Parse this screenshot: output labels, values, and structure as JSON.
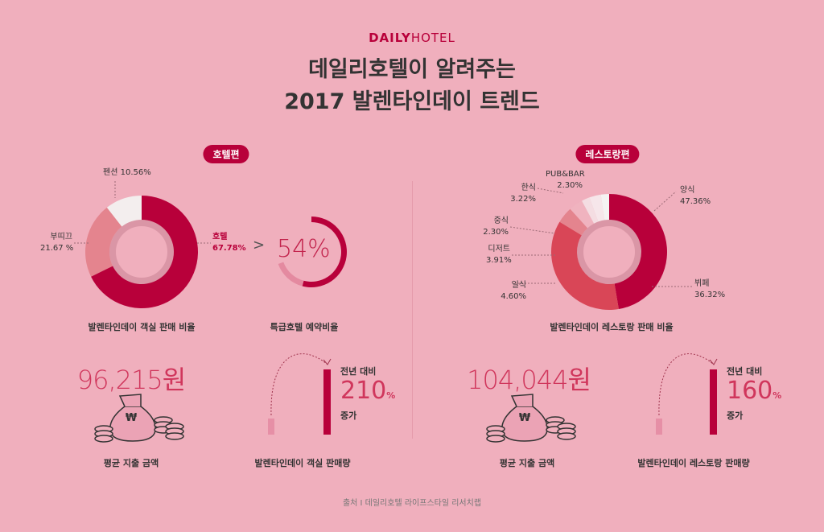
{
  "header": {
    "logo_bold": "DAILY",
    "logo_light": "HOTEL",
    "title_line1": "데일리호텔이 알려주는",
    "title_line2": "2017 발렌타인데이 트렌드"
  },
  "hotel": {
    "pill": "호텔편",
    "donut": {
      "caption": "발렌타인데이 객실 판매 비율",
      "slices": [
        {
          "name": "호텔",
          "value": 67.78,
          "label": "67.78%",
          "color": "#b8003a"
        },
        {
          "name": "부띠끄",
          "value": 21.67,
          "label": "21.67 %",
          "color": "#e4848e"
        },
        {
          "name": "펜션",
          "value": 10.56,
          "label": "10.56%",
          "color": "#f3eeee"
        }
      ]
    },
    "gt": ">",
    "premium": {
      "value": 54,
      "label": "54%",
      "caption": "특급호텔 예약비율"
    },
    "spend": {
      "amount": "96,215원",
      "caption": "평균 지출 금액",
      "currency": "₩"
    },
    "growth": {
      "prefix": "전년 대비",
      "value": "210",
      "unit": "%",
      "suffix": "증가",
      "caption": "발렌타인데이 객실 판매량"
    }
  },
  "restaurant": {
    "pill": "레스토랑편",
    "donut": {
      "caption": "발렌타인데이 레스토랑 판매 비율",
      "slices": [
        {
          "name": "양식",
          "value": 47.36,
          "label": "47.36%",
          "color": "#b8003a"
        },
        {
          "name": "뷔페",
          "value": 36.32,
          "label": "36.32%",
          "color": "#d94657"
        },
        {
          "name": "일식",
          "value": 4.6,
          "label": "4.60%",
          "color": "#e4848e"
        },
        {
          "name": "디저트",
          "value": 3.91,
          "label": "3.91%",
          "color": "#f0b3bf"
        },
        {
          "name": "중식",
          "value": 2.3,
          "label": "2.30%",
          "color": "#f4dde2"
        },
        {
          "name": "한식",
          "value": 3.22,
          "label": "3.22%",
          "color": "#f6e6ea"
        },
        {
          "name": "PUB&BAR",
          "value": 2.3,
          "label": "2.30%",
          "color": "#f5f2f2"
        }
      ]
    },
    "spend": {
      "amount": "104,044원",
      "caption": "평균 지출 금액",
      "currency": "₩"
    },
    "growth": {
      "prefix": "전년 대비",
      "value": "160",
      "unit": "%",
      "suffix": "증가",
      "caption": "발렌타인데이 레스토랑 판매량"
    }
  },
  "footer": "출처 I 데일리호텔 라이프스타일 리서치랩"
}
